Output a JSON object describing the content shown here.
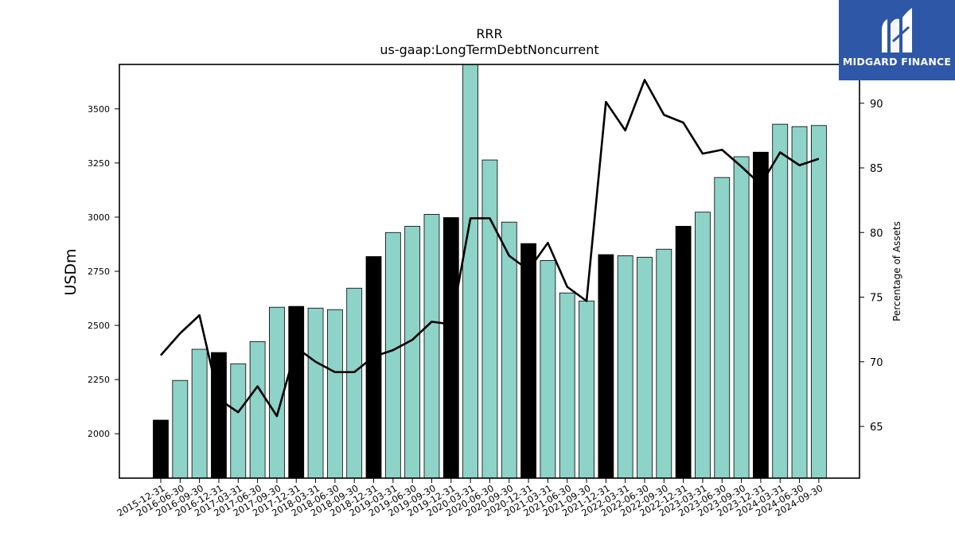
{
  "chart_data": {
    "type": "bar",
    "title": "RRR",
    "subtitle": "us-gaap:LongTermDebtNoncurrent",
    "ylabel": "USDm",
    "y2label": "Percentage of Assets",
    "ylim": [
      1795,
      3705
    ],
    "y2lim": [
      61,
      93
    ],
    "yticks": [
      2000,
      2250,
      2500,
      2750,
      3000,
      3250,
      3500
    ],
    "y2ticks": [
      65,
      70,
      75,
      80,
      85,
      90
    ],
    "grid": false,
    "colors": {
      "annual_bar": "#000000",
      "quarter_bar": "#8dd3c7",
      "line": "#000000"
    },
    "categories": [
      "2015-12-31",
      "2016-06-30",
      "2016-09-30",
      "2016-12-31",
      "2017-03-31",
      "2017-06-30",
      "2017-09-30",
      "2017-12-31",
      "2018-03-31",
      "2018-06-30",
      "2018-09-30",
      "2018-12-31",
      "2019-03-31",
      "2019-06-30",
      "2019-09-30",
      "2019-12-31",
      "2020-03-31",
      "2020-06-30",
      "2020-09-30",
      "2020-12-31",
      "2021-03-31",
      "2021-06-30",
      "2021-09-30",
      "2021-12-31",
      "2022-03-31",
      "2022-06-30",
      "2022-09-30",
      "2022-12-31",
      "2023-03-31",
      "2023-06-30",
      "2023-09-30",
      "2023-12-31",
      "2024-03-31",
      "2024-06-30",
      "2024-09-30"
    ],
    "annual": [
      true,
      false,
      false,
      true,
      false,
      false,
      false,
      true,
      false,
      false,
      false,
      true,
      false,
      false,
      false,
      true,
      false,
      false,
      false,
      true,
      false,
      false,
      false,
      true,
      false,
      false,
      false,
      true,
      false,
      false,
      false,
      true,
      false,
      false,
      false
    ],
    "series": [
      {
        "type": "bar",
        "axis": "left",
        "values": [
          2063,
          2246,
          2390,
          2375,
          2323,
          2425,
          2584,
          2588,
          2580,
          2573,
          2672,
          2818,
          2929,
          2958,
          3013,
          2998,
          3705,
          3264,
          2977,
          2878,
          2800,
          2650,
          2613,
          2827,
          2822,
          2815,
          2852,
          2958,
          3023,
          3183,
          3279,
          3300,
          3429,
          3418,
          3423
        ]
      },
      {
        "type": "line",
        "axis": "right",
        "values": [
          70.5,
          72.2,
          73.6,
          67.1,
          66.1,
          68.1,
          65.8,
          71.1,
          70.0,
          69.2,
          69.2,
          70.4,
          70.9,
          71.7,
          73.1,
          72.9,
          81.1,
          81.1,
          78.2,
          77.1,
          79.2,
          75.8,
          74.7,
          90.1,
          87.9,
          91.8,
          89.1,
          88.5,
          86.1,
          86.4,
          85.1,
          83.7,
          86.2,
          85.2,
          85.7
        ]
      }
    ]
  },
  "branding": {
    "text": "MIDGARD FINANCE"
  }
}
